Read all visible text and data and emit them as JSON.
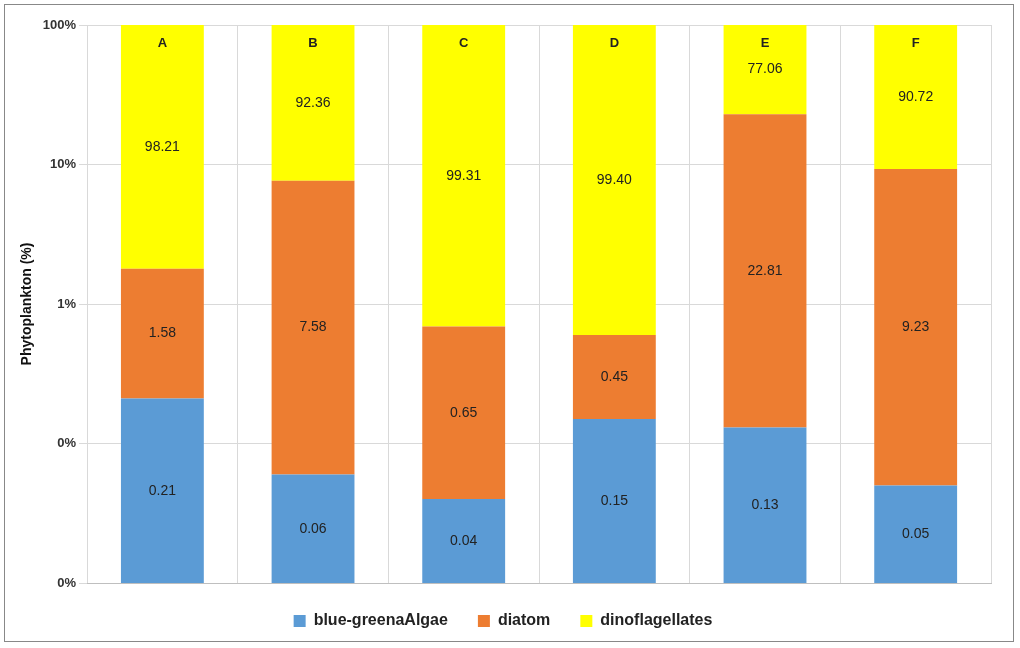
{
  "chart_data": {
    "type": "bar",
    "stacked": true,
    "log": "y",
    "ylabel": "Phytoplankton (%)",
    "categories": [
      "A",
      "B",
      "C",
      "D",
      "E",
      "F"
    ],
    "series": [
      {
        "name": "blue-greenaAlgae",
        "color": "#5b9bd5",
        "values": [
          0.21,
          0.06,
          0.04,
          0.15,
          0.13,
          0.05
        ],
        "value_labels": [
          "0.21",
          "0.06",
          "0.04",
          "0.15",
          "0.13",
          "0.05"
        ]
      },
      {
        "name": "diatom",
        "color": "#ed7d31",
        "values": [
          1.58,
          7.58,
          0.65,
          0.45,
          22.81,
          9.23
        ],
        "value_labels": [
          "1.58",
          "7.58",
          "0.65",
          "0.45",
          "22.81",
          "9.23"
        ]
      },
      {
        "name": "dinoflagellates",
        "color": "#ffff00",
        "values": [
          98.21,
          92.36,
          99.31,
          99.4,
          77.06,
          90.72
        ],
        "value_labels": [
          "98.21",
          "92.36",
          "99.31",
          "99.40",
          "77.06",
          "90.72"
        ]
      }
    ],
    "ylim": [
      0.01,
      100
    ],
    "yticks": [
      {
        "value": 0.01,
        "label": "0%"
      },
      {
        "value": 0.1,
        "label": "0%"
      },
      {
        "value": 1,
        "label": "1%"
      },
      {
        "value": 10,
        "label": "10%"
      },
      {
        "value": 100,
        "label": "100%"
      }
    ],
    "grid": true,
    "legend": "bottom"
  }
}
